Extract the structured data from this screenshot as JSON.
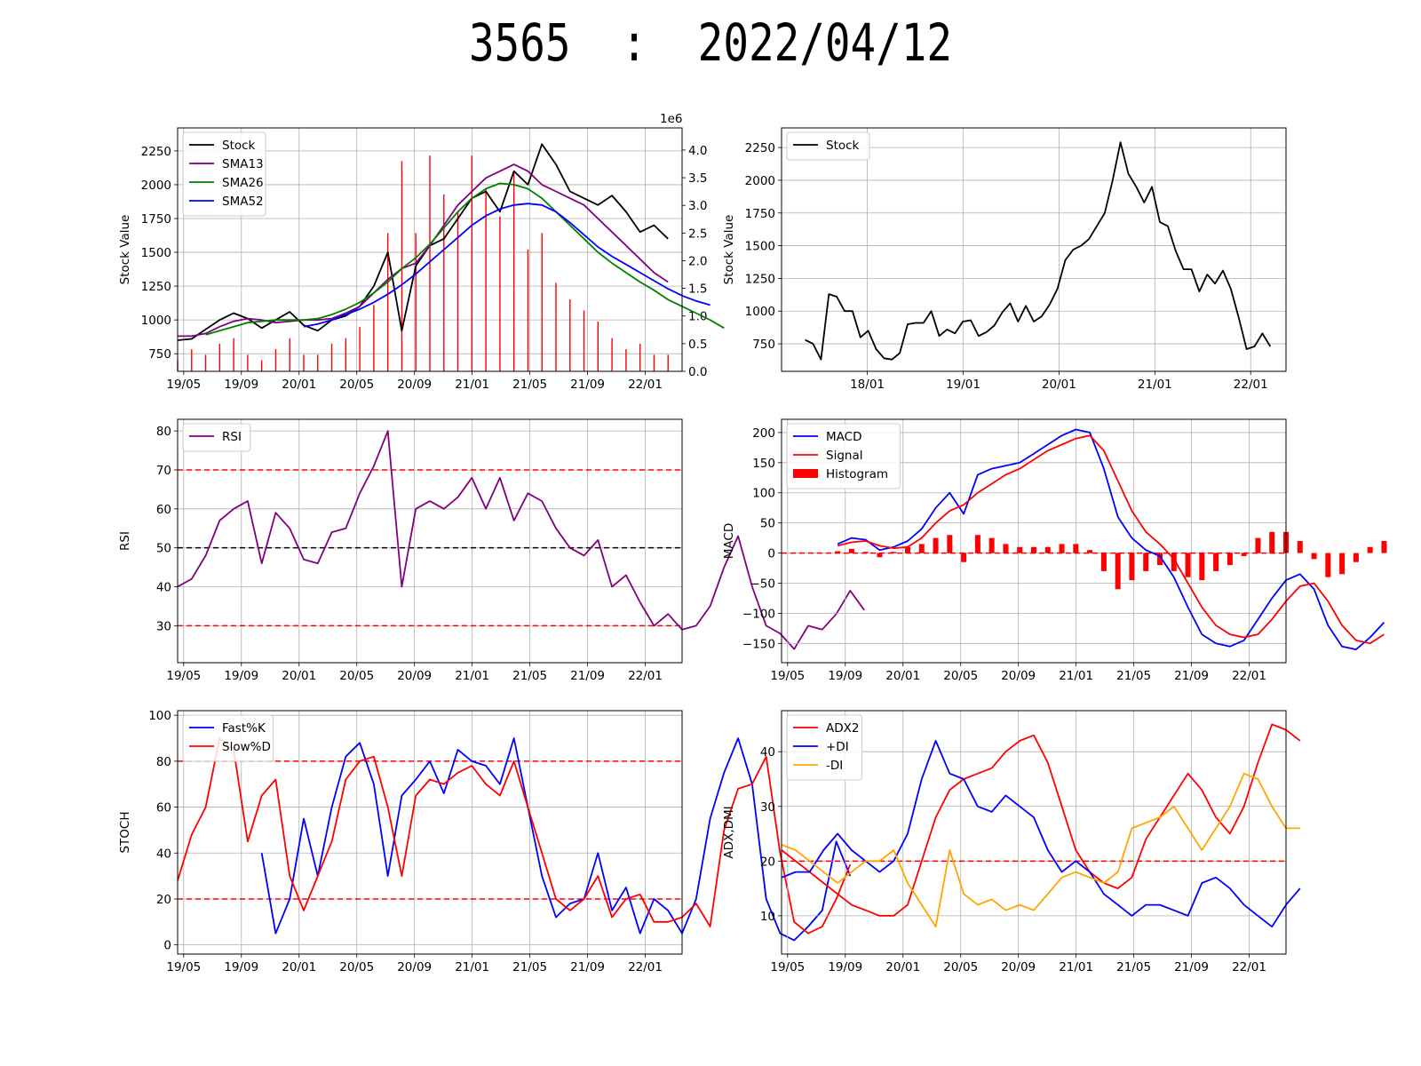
{
  "title": "3565  :  2022/04/12",
  "colors": {
    "stock": "#000000",
    "sma13": "#800080",
    "sma26": "#008000",
    "sma52": "#0000ff",
    "volume": "#ff0000",
    "rsi": "#800080",
    "macd": "#0000ff",
    "signal": "#ff0000",
    "fastk": "#0000ff",
    "slowd": "#ff0000",
    "adx": "#ff0000",
    "pdi": "#0000ff",
    "mdi": "#ffa500",
    "ref_red": "#ff0000",
    "ref_black": "#000000"
  },
  "chart_data": [
    {
      "id": "price",
      "type": "line",
      "ylabel": "Stock Value",
      "y2_offset_label": "1e6",
      "xticks": [
        "19/05",
        "19/09",
        "20/01",
        "20/05",
        "20/09",
        "21/01",
        "21/05",
        "21/09",
        "22/01"
      ],
      "yticks": [
        "750",
        "1000",
        "1250",
        "1500",
        "1750",
        "2000",
        "2250"
      ],
      "y2ticks": [
        "0.0",
        "0.5",
        "1.0",
        "1.5",
        "2.0",
        "2.5",
        "3.0",
        "3.5",
        "4.0"
      ],
      "xlim": [
        0,
        36
      ],
      "ylim": [
        620,
        2420
      ],
      "y2lim": [
        0,
        4.4
      ],
      "legend": "upper-left",
      "series": [
        {
          "name": "Stock",
          "color_key": "stock",
          "start": 0,
          "values": [
            850,
            860,
            930,
            1000,
            1050,
            1010,
            940,
            1000,
            1060,
            960,
            920,
            1000,
            1030,
            1100,
            1250,
            1500,
            920,
            1400,
            1550,
            1600,
            1750,
            1900,
            1950,
            1800,
            2100,
            2000,
            2300,
            2150,
            1950,
            1900,
            1850,
            1920,
            1800,
            1650,
            1700,
            1600
          ]
        },
        {
          "name": "SMA13",
          "color_key": "sma13",
          "start": 0,
          "values": [
            880,
            880,
            900,
            950,
            990,
            1010,
            1000,
            980,
            990,
            1000,
            1000,
            1010,
            1050,
            1100,
            1200,
            1300,
            1380,
            1420,
            1550,
            1700,
            1850,
            1950,
            2050,
            2100,
            2150,
            2100,
            2000,
            1950,
            1900,
            1850,
            1750,
            1650,
            1550,
            1450,
            1350,
            1280
          ]
        },
        {
          "name": "SMA26",
          "color_key": "sma26",
          "start": 2,
          "values": [
            890,
            920,
            950,
            980,
            990,
            1000,
            1000,
            1000,
            1010,
            1040,
            1080,
            1130,
            1200,
            1280,
            1380,
            1460,
            1560,
            1680,
            1800,
            1900,
            1970,
            2010,
            2000,
            1970,
            1900,
            1800,
            1700,
            1600,
            1500,
            1420,
            1350,
            1280,
            1220,
            1150,
            1100,
            1050,
            1000,
            940
          ]
        },
        {
          "name": "SMA52",
          "color_key": "sma52",
          "start": 9,
          "values": [
            950,
            970,
            1000,
            1040,
            1080,
            1130,
            1190,
            1260,
            1340,
            1430,
            1520,
            1610,
            1700,
            1770,
            1820,
            1850,
            1860,
            1850,
            1800,
            1720,
            1630,
            1540,
            1470,
            1410,
            1350,
            1290,
            1230,
            1180,
            1140,
            1110
          ]
        }
      ],
      "volume": {
        "name": "Volume",
        "color_key": "volume",
        "values": [
          0.2,
          0.4,
          0.3,
          0.5,
          0.6,
          0.3,
          0.2,
          0.4,
          0.6,
          0.3,
          0.3,
          0.5,
          0.6,
          0.8,
          1.2,
          2.5,
          3.8,
          2.5,
          3.9,
          3.2,
          2.9,
          3.9,
          3.3,
          2.8,
          3.6,
          2.2,
          2.5,
          1.6,
          1.3,
          1.1,
          0.9,
          0.6,
          0.4,
          0.5,
          0.3,
          0.3
        ]
      }
    },
    {
      "id": "weekly",
      "type": "line",
      "ylabel": "Stock Value",
      "xticks": [
        "18/01",
        "19/01",
        "20/01",
        "21/01",
        "22/01"
      ],
      "yticks": [
        "750",
        "1000",
        "1250",
        "1500",
        "1750",
        "2000",
        "2250"
      ],
      "xlim": [
        0,
        64
      ],
      "ylim": [
        540,
        2400
      ],
      "legend": "upper-left",
      "series": [
        {
          "name": "Stock",
          "color_key": "stock",
          "start": 3,
          "values": [
            780,
            750,
            630,
            1130,
            1110,
            1000,
            1000,
            800,
            850,
            710,
            640,
            630,
            680,
            900,
            910,
            910,
            1000,
            810,
            860,
            830,
            920,
            930,
            810,
            840,
            890,
            990,
            1060,
            920,
            1040,
            920,
            960,
            1050,
            1170,
            1390,
            1470,
            1500,
            1550,
            1650,
            1750,
            2000,
            2290,
            2050,
            1950,
            1830,
            1950,
            1680,
            1650,
            1460,
            1320,
            1320,
            1150,
            1280,
            1210,
            1310,
            1170,
            950,
            710,
            730,
            830,
            730
          ]
        }
      ]
    },
    {
      "id": "rsi",
      "type": "line",
      "ylabel": "RSI",
      "xticks": [
        "19/05",
        "19/09",
        "20/01",
        "20/05",
        "20/09",
        "21/01",
        "21/05",
        "21/09",
        "22/01"
      ],
      "yticks": [
        "30",
        "40",
        "50",
        "60",
        "70",
        "80"
      ],
      "xlim": [
        0,
        36
      ],
      "ylim": [
        20.5,
        83
      ],
      "reference_lines": [
        {
          "value": 70,
          "color_key": "ref_red"
        },
        {
          "value": 50,
          "color_key": "ref_black"
        },
        {
          "value": 30,
          "color_key": "ref_red"
        }
      ],
      "legend": "upper-left",
      "series": [
        {
          "name": "RSI",
          "color_key": "rsi",
          "start": 0,
          "values": [
            40,
            42,
            48,
            57,
            60,
            62,
            46,
            59,
            55,
            47,
            46,
            54,
            55,
            64,
            71,
            80,
            40,
            60,
            62,
            60,
            63,
            68,
            60,
            68,
            57,
            64,
            62,
            55,
            50,
            48,
            52,
            40,
            43,
            36,
            30,
            33,
            29,
            30,
            35,
            45,
            53,
            40,
            30,
            28,
            24,
            30,
            29,
            33,
            39,
            34
          ]
        }
      ]
    },
    {
      "id": "macd",
      "type": "line",
      "ylabel": "MACD",
      "xticks": [
        "19/05",
        "19/09",
        "20/01",
        "20/05",
        "20/09",
        "21/01",
        "21/05",
        "21/09",
        "22/01"
      ],
      "yticks": [
        "200",
        "150",
        "100",
        "50",
        "0",
        "−50",
        "−100",
        "−150"
      ],
      "xlim": [
        0,
        36
      ],
      "ylim": [
        -182,
        222
      ],
      "reference_lines": [
        {
          "value": 0,
          "color_key": "ref_red"
        }
      ],
      "legend": "upper-left",
      "series": [
        {
          "name": "MACD",
          "color_key": "macd",
          "start": 4,
          "values": [
            15,
            25,
            22,
            5,
            10,
            20,
            40,
            75,
            100,
            65,
            130,
            140,
            145,
            150,
            165,
            180,
            195,
            205,
            200,
            140,
            60,
            25,
            5,
            -5,
            -40,
            -90,
            -135,
            -150,
            -155,
            -145,
            -110,
            -75,
            -45,
            -35,
            -60,
            -120,
            -155,
            -160,
            -140,
            -115
          ]
        },
        {
          "name": "Signal",
          "color_key": "signal",
          "start": 4,
          "values": [
            12,
            18,
            20,
            12,
            8,
            10,
            25,
            50,
            70,
            80,
            100,
            115,
            130,
            140,
            155,
            170,
            180,
            190,
            195,
            170,
            120,
            70,
            35,
            15,
            -10,
            -50,
            -90,
            -120,
            -135,
            -140,
            -135,
            -110,
            -80,
            -55,
            -50,
            -80,
            -120,
            -145,
            -150,
            -135
          ]
        }
      ],
      "histogram": {
        "name": "Histogram",
        "color_key": "signal",
        "start": 4,
        "values": [
          3,
          7,
          2,
          -7,
          2,
          10,
          15,
          25,
          30,
          -15,
          30,
          25,
          15,
          10,
          10,
          10,
          15,
          15,
          5,
          -30,
          -60,
          -45,
          -30,
          -20,
          -30,
          -40,
          -45,
          -30,
          -20,
          -5,
          25,
          35,
          35,
          20,
          -10,
          -40,
          -35,
          -15,
          10,
          20
        ]
      }
    },
    {
      "id": "stoch",
      "type": "line",
      "ylabel": "STOCH",
      "xticks": [
        "19/05",
        "19/09",
        "20/01",
        "20/05",
        "20/09",
        "21/01",
        "21/05",
        "21/09",
        "22/01"
      ],
      "yticks": [
        "0",
        "20",
        "40",
        "60",
        "80",
        "100"
      ],
      "xlim": [
        0,
        36
      ],
      "ylim": [
        -4,
        102
      ],
      "reference_lines": [
        {
          "value": 80,
          "color_key": "ref_red"
        },
        {
          "value": 20,
          "color_key": "ref_red"
        }
      ],
      "legend": "upper-left",
      "series": [
        {
          "name": "Fast%K",
          "color_key": "fastk",
          "start": 6,
          "values": [
            40,
            5,
            20,
            55,
            30,
            60,
            82,
            88,
            70,
            30,
            65,
            72,
            80,
            66,
            85,
            80,
            78,
            70,
            90,
            60,
            30,
            12,
            18,
            20,
            40,
            15,
            25,
            5,
            20,
            15,
            5,
            20,
            55,
            75,
            90,
            70,
            20,
            5,
            2,
            8,
            15,
            45,
            30
          ]
        },
        {
          "name": "Slow%D",
          "color_key": "slowd",
          "start": 0,
          "values": [
            28,
            48,
            60,
            90,
            85,
            45,
            65,
            72,
            30,
            15,
            30,
            45,
            72,
            80,
            82,
            60,
            30,
            65,
            72,
            70,
            75,
            78,
            70,
            65,
            80,
            60,
            40,
            20,
            15,
            20,
            30,
            12,
            20,
            22,
            10,
            10,
            12,
            18,
            8,
            50,
            68,
            70,
            82,
            40,
            10,
            5,
            8,
            20,
            35
          ]
        }
      ]
    },
    {
      "id": "adx",
      "type": "line",
      "ylabel": "ADX,DMI",
      "xticks": [
        "19/05",
        "19/09",
        "20/01",
        "20/05",
        "20/09",
        "21/01",
        "21/05",
        "21/09",
        "22/01"
      ],
      "yticks": [
        "10",
        "20",
        "30",
        "40"
      ],
      "xlim": [
        0,
        36
      ],
      "ylim": [
        3,
        47.5
      ],
      "reference_lines": [
        {
          "value": 20,
          "color_key": "ref_red"
        }
      ],
      "legend": "upper-left",
      "series": [
        {
          "name": "ADX2",
          "color_key": "adx",
          "start": 0,
          "values": [
            22,
            20,
            18,
            16,
            14,
            12,
            11,
            10,
            10,
            12,
            20,
            28,
            33,
            35,
            36,
            37,
            40,
            42,
            43,
            38,
            30,
            22,
            18,
            16,
            15,
            17,
            24,
            28,
            32,
            36,
            33,
            28,
            25,
            30,
            38,
            45,
            44,
            42
          ]
        },
        {
          "name": "+DI",
          "color_key": "pdi",
          "start": 0,
          "values": [
            17,
            18,
            18,
            22,
            25,
            22,
            20,
            18,
            20,
            25,
            35,
            42,
            36,
            35,
            30,
            29,
            32,
            30,
            28,
            22,
            18,
            20,
            18,
            14,
            12,
            10,
            12,
            12,
            11,
            10,
            16,
            17,
            15,
            12,
            10,
            8,
            12,
            15
          ]
        },
        {
          "name": "-DI",
          "color_key": "mdi",
          "start": 0,
          "values": [
            23,
            22,
            20,
            18,
            16,
            18,
            20,
            20,
            22,
            16,
            12,
            8,
            22,
            14,
            12,
            13,
            11,
            12,
            11,
            14,
            17,
            18,
            17,
            16,
            18,
            26,
            27,
            28,
            30,
            26,
            22,
            26,
            30,
            36,
            35,
            30,
            26,
            26
          ]
        }
      ]
    }
  ]
}
